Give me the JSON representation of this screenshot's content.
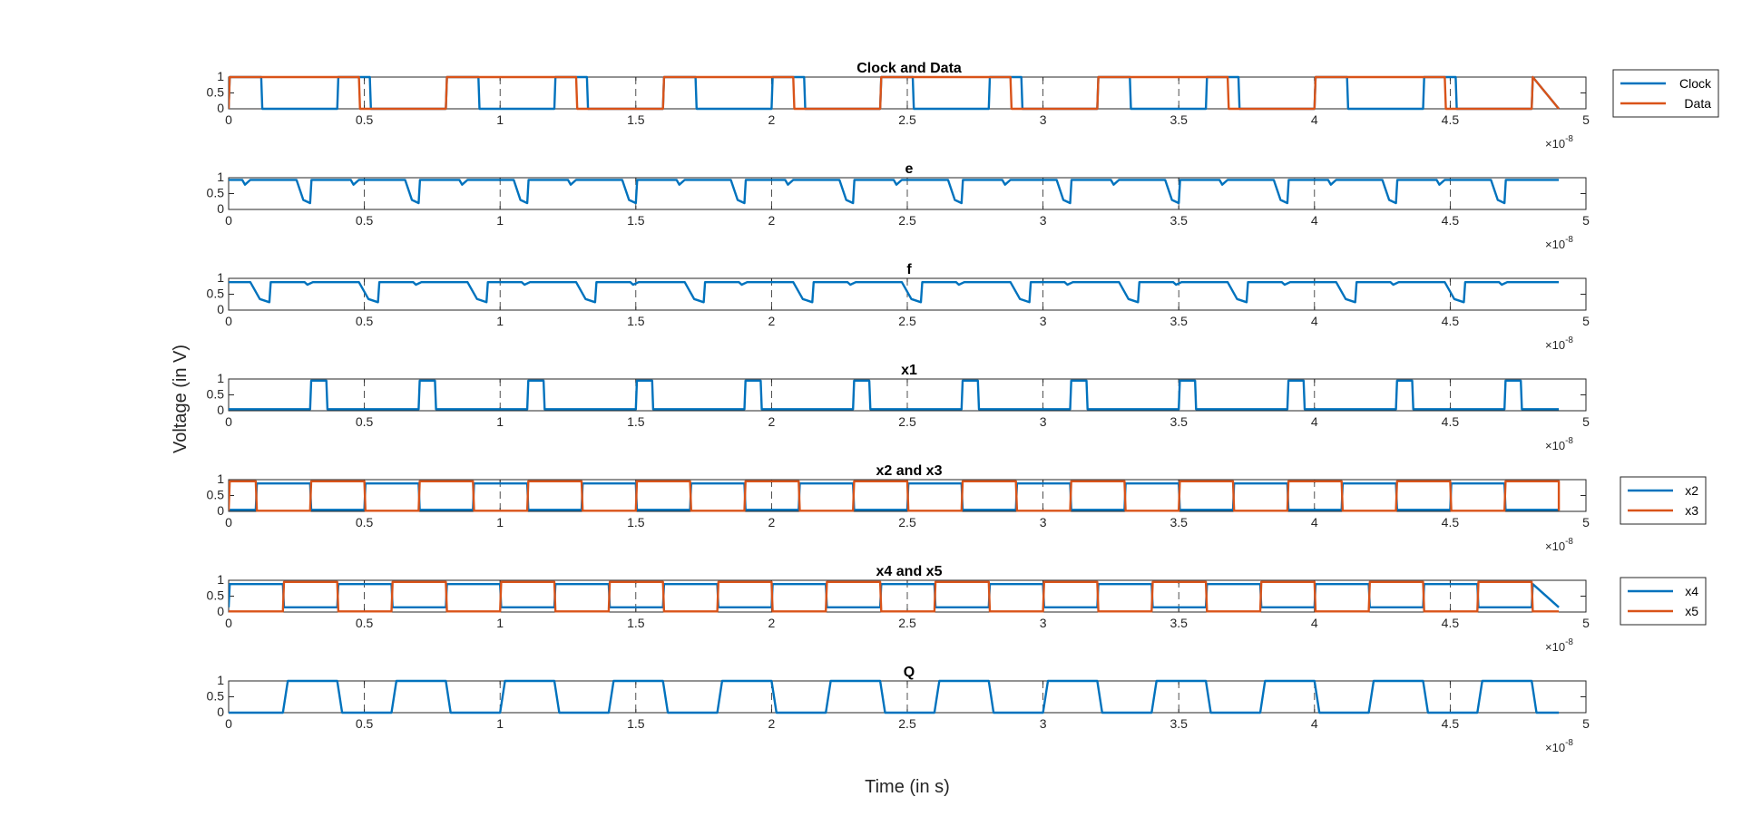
{
  "figure": {
    "ylabel": "Voltage (in V)",
    "xlabel": "Time (in s)",
    "x_exponent_base": "×10",
    "x_exponent_power": "-8"
  },
  "chart_data": [
    {
      "type": "line",
      "title": "Clock and Data",
      "xlim": [
        0,
        5
      ],
      "x_scale": "×10^-8",
      "ylim": [
        0,
        1
      ],
      "yticks": [
        "0",
        "0.5",
        "1"
      ],
      "xticks": [
        "0",
        "0.5",
        "1",
        "1.5",
        "2",
        "2.5",
        "3",
        "3.5",
        "4",
        "4.5",
        "5"
      ],
      "grid": "vertical dashed",
      "legend_position": "outside-right",
      "series": [
        {
          "name": "Clock",
          "color": "#0072BD",
          "kind": "square",
          "period": 0.4,
          "phase": 0.0,
          "duty": 0.3,
          "end": 4.9
        },
        {
          "name": "Data",
          "color": "#D95319",
          "kind": "square",
          "period": 0.8,
          "phase": 0.0,
          "duty": 0.6,
          "end": 4.9
        }
      ]
    },
    {
      "type": "line",
      "title": "e",
      "xlim": [
        0,
        5
      ],
      "x_scale": "×10^-8",
      "ylim": [
        0,
        1
      ],
      "yticks": [
        "0",
        "0.5",
        "1"
      ],
      "xticks": [
        "0",
        "0.5",
        "1",
        "1.5",
        "2",
        "2.5",
        "3",
        "3.5",
        "4",
        "4.5",
        "5"
      ],
      "grid": "vertical dashed",
      "series": [
        {
          "color": "#0072BD",
          "kind": "dips",
          "high": 0.93,
          "low": 0.2,
          "period": 0.4,
          "phase": 0.25,
          "width": 0.05,
          "small_dip": 0.78,
          "end": 4.9
        }
      ]
    },
    {
      "type": "line",
      "title": "f",
      "xlim": [
        0,
        5
      ],
      "x_scale": "×10^-8",
      "ylim": [
        0,
        1
      ],
      "yticks": [
        "0",
        "0.5",
        "1"
      ],
      "xticks": [
        "0",
        "0.5",
        "1",
        "1.5",
        "2",
        "2.5",
        "3",
        "3.5",
        "4",
        "4.5",
        "5"
      ],
      "grid": "vertical dashed",
      "series": [
        {
          "color": "#0072BD",
          "kind": "dips",
          "high": 0.88,
          "low": 0.25,
          "period": 0.4,
          "phase": 0.08,
          "width": 0.07,
          "small_dip": 0.8,
          "end": 4.9
        }
      ]
    },
    {
      "type": "line",
      "title": "x1",
      "xlim": [
        0,
        5
      ],
      "x_scale": "×10^-8",
      "ylim": [
        0,
        1
      ],
      "yticks": [
        "0",
        "0.5",
        "1"
      ],
      "xticks": [
        "0",
        "0.5",
        "1",
        "1.5",
        "2",
        "2.5",
        "3",
        "3.5",
        "4",
        "4.5",
        "5"
      ],
      "grid": "vertical dashed",
      "series": [
        {
          "color": "#0072BD",
          "kind": "square",
          "period": 0.4,
          "phase": 0.3,
          "duty": 0.15,
          "high": 0.95,
          "low": 0.05,
          "end": 4.9
        }
      ]
    },
    {
      "type": "line",
      "title": "x2 and x3",
      "xlim": [
        0,
        5
      ],
      "x_scale": "×10^-8",
      "ylim": [
        0,
        1
      ],
      "yticks": [
        "0",
        "0.5",
        "1"
      ],
      "xticks": [
        "0",
        "0.5",
        "1",
        "1.5",
        "2",
        "2.5",
        "3",
        "3.5",
        "4",
        "4.5",
        "5"
      ],
      "grid": "vertical dashed",
      "legend_position": "outside-right",
      "series": [
        {
          "name": "x2",
          "color": "#0072BD",
          "kind": "square",
          "period": 0.4,
          "phase": 0.1,
          "duty": 0.5,
          "high": 0.88,
          "low": 0.05,
          "end": 4.9
        },
        {
          "name": "x3",
          "color": "#D95319",
          "kind": "square",
          "period": 0.4,
          "phase": 0.3,
          "duty": 0.5,
          "high": 0.95,
          "low": 0.02,
          "end": 4.9
        }
      ]
    },
    {
      "type": "line",
      "title": "x4 and x5",
      "xlim": [
        0,
        5
      ],
      "x_scale": "×10^-8",
      "ylim": [
        0,
        1
      ],
      "yticks": [
        "0",
        "0.5",
        "1"
      ],
      "xticks": [
        "0",
        "0.5",
        "1",
        "1.5",
        "2",
        "2.5",
        "3",
        "3.5",
        "4",
        "4.5",
        "5"
      ],
      "grid": "vertical dashed",
      "legend_position": "outside-right",
      "series": [
        {
          "name": "x4",
          "color": "#0072BD",
          "kind": "square",
          "period": 0.4,
          "phase": 0.0,
          "duty": 0.5,
          "high": 0.88,
          "low": 0.15,
          "end": 4.9
        },
        {
          "name": "x5",
          "color": "#D95319",
          "kind": "square",
          "period": 0.4,
          "phase": 0.2,
          "duty": 0.5,
          "high": 0.95,
          "low": 0.02,
          "end": 4.9
        }
      ]
    },
    {
      "type": "line",
      "title": "Q",
      "xlim": [
        0,
        5
      ],
      "x_scale": "×10^-8",
      "ylim": [
        0,
        1
      ],
      "yticks": [
        "0",
        "0.5",
        "1"
      ],
      "xticks": [
        "0",
        "0.5",
        "1",
        "1.5",
        "2",
        "2.5",
        "3",
        "3.5",
        "4",
        "4.5",
        "5"
      ],
      "grid": "vertical dashed",
      "series": [
        {
          "color": "#0072BD",
          "kind": "square",
          "period": 0.4,
          "phase": 0.2,
          "duty": 0.5,
          "high": 1.0,
          "low": 0.0,
          "slow": true,
          "end": 4.9
        }
      ]
    }
  ]
}
